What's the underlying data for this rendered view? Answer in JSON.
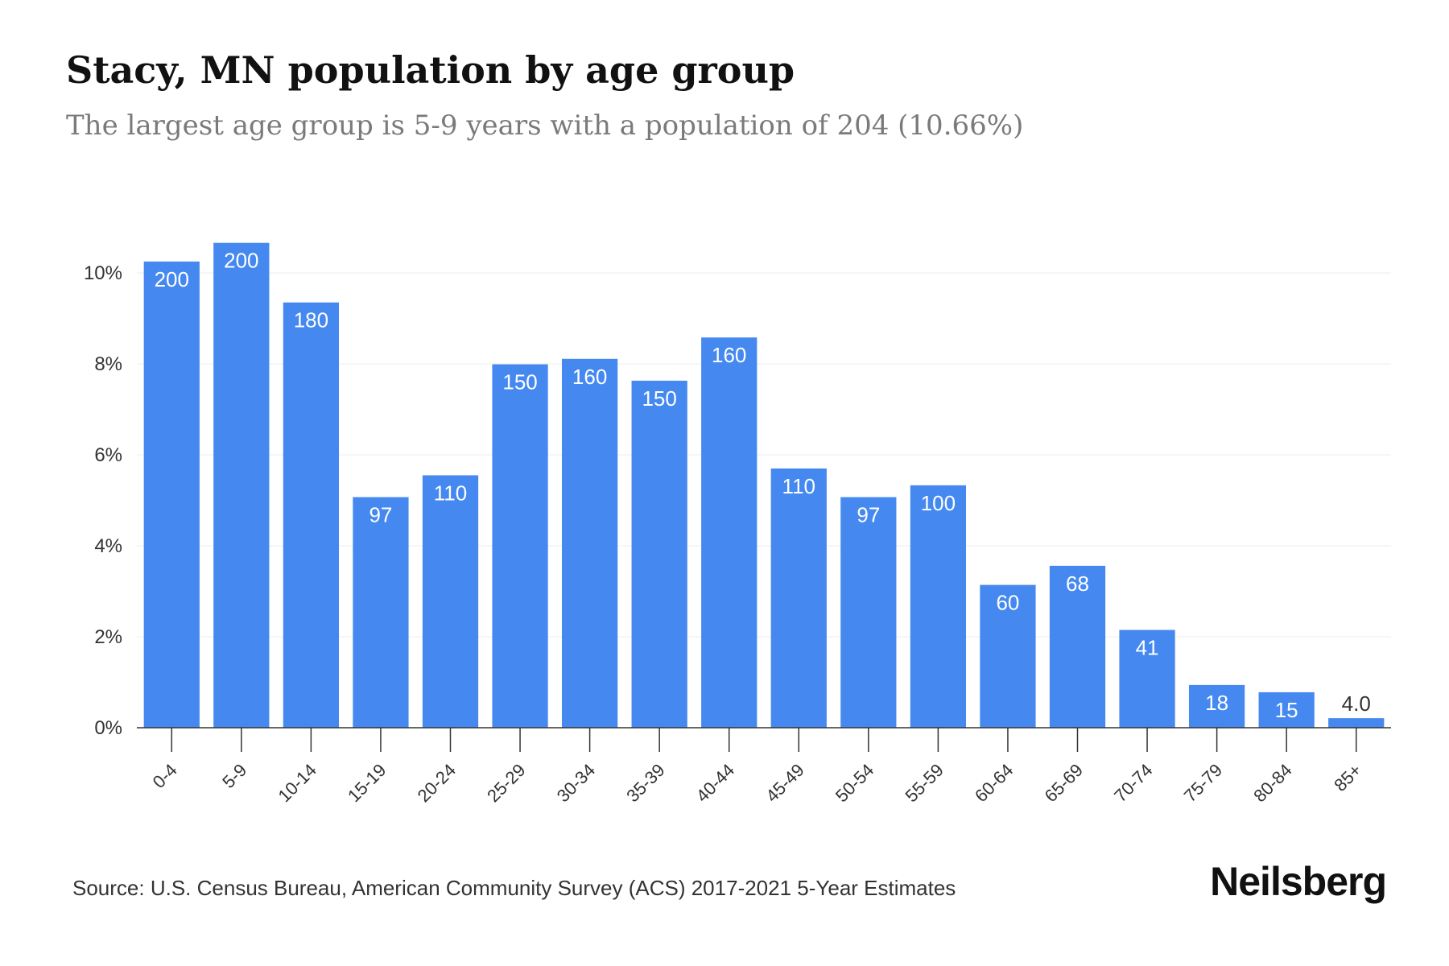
{
  "header": {
    "title": "Stacy, MN population by age group",
    "subtitle": "The largest age group is 5-9 years with a population of 204 (10.66%)"
  },
  "footer": {
    "source": "Source: U.S. Census Bureau, American Community Survey (ACS) 2017-2021 5-Year Estimates",
    "brand": "Neilsberg"
  },
  "colors": {
    "bar": "#4589f0",
    "label_inside": "#ffffff",
    "label_outside": "#333333",
    "grid": "#eeeeee",
    "axis": "#333333"
  },
  "chart_data": {
    "type": "bar",
    "title": "Stacy, MN population by age group",
    "xlabel": "",
    "ylabel": "",
    "ylim": [
      0,
      10
    ],
    "yticks": [
      0,
      2,
      4,
      6,
      8,
      10
    ],
    "ytick_labels": [
      "0%",
      "2%",
      "4%",
      "6%",
      "8%",
      "10%"
    ],
    "grid": true,
    "categories": [
      "0-4",
      "5-9",
      "10-14",
      "15-19",
      "20-24",
      "25-29",
      "30-34",
      "35-39",
      "40-44",
      "45-49",
      "50-54",
      "55-59",
      "60-64",
      "65-69",
      "70-74",
      "75-79",
      "80-84",
      "85+"
    ],
    "values": [
      10.25,
      10.66,
      9.35,
      5.07,
      5.55,
      7.99,
      8.11,
      7.63,
      8.58,
      5.7,
      5.07,
      5.33,
      3.14,
      3.56,
      2.15,
      0.94,
      0.78,
      0.21
    ],
    "data_labels": [
      "200",
      "200",
      "180",
      "97",
      "110",
      "150",
      "160",
      "150",
      "160",
      "110",
      "97",
      "100",
      "60",
      "68",
      "41",
      "18",
      "15",
      "4.0"
    ]
  }
}
